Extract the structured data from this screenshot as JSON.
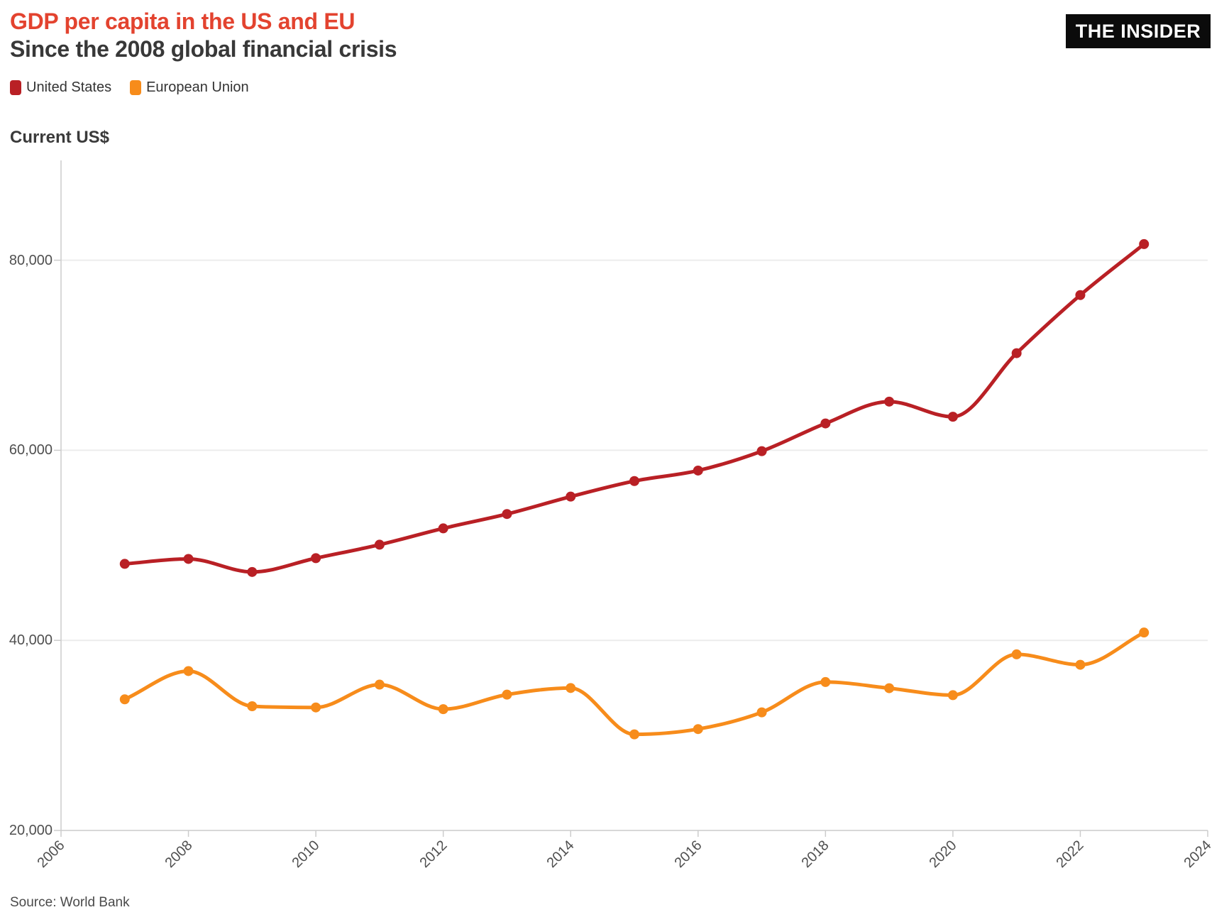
{
  "header": {
    "title": "GDP per capita in the US and EU",
    "subtitle": "Since the 2008 global financial crisis"
  },
  "logo": {
    "text": "THE INSIDER"
  },
  "axis_unit_label": "Current US$",
  "source": {
    "text": "Source: World Bank"
  },
  "colors": {
    "title_red": "#e3432f",
    "us_red": "#b92025",
    "eu_orange": "#f78c1b",
    "gridline": "#ececec",
    "axis_line": "#cccccc",
    "tick_text": "#4f4f4f",
    "dark_text": "#383838",
    "logo_bg": "#0b0b0b",
    "logo_text": "#ffffff"
  },
  "chart_data": {
    "type": "line",
    "title": "GDP per capita in the US and EU",
    "subtitle": "Since the 2008 global financial crisis",
    "ylabel": "Current US$",
    "xlabel": "",
    "x": [
      2007,
      2008,
      2009,
      2010,
      2011,
      2012,
      2013,
      2014,
      2015,
      2016,
      2017,
      2018,
      2019,
      2020,
      2021,
      2022,
      2023
    ],
    "series": [
      {
        "name": "United States",
        "color": "#b92025",
        "values": [
          48050,
          48570,
          47195,
          48650,
          50066,
          51784,
          53291,
          55124,
          56763,
          57867,
          59908,
          62823,
          65120,
          63530,
          70219,
          76330,
          81695
        ]
      },
      {
        "name": "European Union",
        "color": "#f78c1b",
        "values": [
          33795,
          36769,
          33069,
          32940,
          35344,
          32761,
          34293,
          34987,
          30111,
          30664,
          32426,
          35616,
          34967,
          34235,
          38527,
          37433,
          40824
        ]
      }
    ],
    "xlim": [
      2006,
      2024
    ],
    "ylim": [
      20000,
      90500
    ],
    "yticks": [
      {
        "value": 20000,
        "label": "20,000"
      },
      {
        "value": 40000,
        "label": "40,000"
      },
      {
        "value": 60000,
        "label": "60,000"
      },
      {
        "value": 80000,
        "label": "80,000"
      }
    ],
    "xticks": [
      {
        "value": 2006,
        "label": "2006"
      },
      {
        "value": 2008,
        "label": "2008"
      },
      {
        "value": 2010,
        "label": "2010"
      },
      {
        "value": 2012,
        "label": "2012"
      },
      {
        "value": 2014,
        "label": "2014"
      },
      {
        "value": 2016,
        "label": "2016"
      },
      {
        "value": 2018,
        "label": "2018"
      },
      {
        "value": 2020,
        "label": "2020"
      },
      {
        "value": 2022,
        "label": "2022"
      },
      {
        "value": 2024,
        "label": "2024"
      }
    ],
    "grid": "horizontal",
    "legend_position": "top-left",
    "curve": "smooth",
    "markers": true
  }
}
